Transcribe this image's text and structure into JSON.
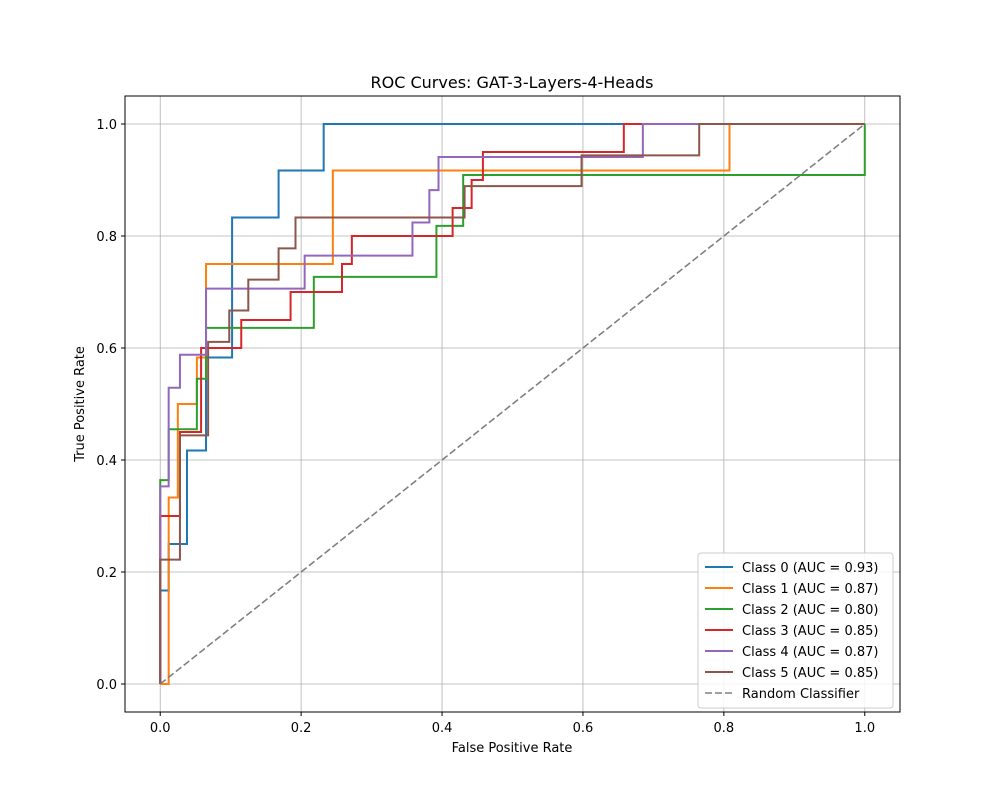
{
  "chart_data": {
    "type": "line",
    "title": "ROC Curves: GAT-3-Layers-4-Heads",
    "xlabel": "False Positive Rate",
    "ylabel": "True Positive Rate",
    "xlim": [
      -0.05,
      1.05
    ],
    "ylim": [
      -0.05,
      1.05
    ],
    "xticks": [
      0.0,
      0.2,
      0.4,
      0.6,
      0.8,
      1.0
    ],
    "yticks": [
      0.0,
      0.2,
      0.4,
      0.6,
      0.8,
      1.0
    ],
    "xtick_labels": [
      "0.0",
      "0.2",
      "0.4",
      "0.6",
      "0.8",
      "1.0"
    ],
    "ytick_labels": [
      "0.0",
      "0.2",
      "0.4",
      "0.6",
      "0.8",
      "1.0"
    ],
    "grid": true,
    "legend_position": "lower right",
    "series": [
      {
        "name": "Class 0 (AUC = 0.93)",
        "color": "#1f77b4",
        "step": true,
        "x": [
          0,
          0,
          0.012,
          0.012,
          0.038,
          0.038,
          0.065,
          0.065,
          0.102,
          0.102,
          0.168,
          0.168,
          0.232,
          0.232,
          1.0
        ],
        "y": [
          0,
          0.167,
          0.167,
          0.25,
          0.25,
          0.417,
          0.417,
          0.583,
          0.583,
          0.833,
          0.833,
          0.917,
          0.917,
          1.0,
          1.0
        ]
      },
      {
        "name": "Class 1 (AUC = 0.87)",
        "color": "#ff7f0e",
        "step": true,
        "x": [
          0,
          0.012,
          0.012,
          0.025,
          0.025,
          0.052,
          0.052,
          0.065,
          0.065,
          0.245,
          0.245,
          0.808,
          0.808,
          1.0
        ],
        "y": [
          0,
          0,
          0.333,
          0.333,
          0.5,
          0.5,
          0.583,
          0.583,
          0.75,
          0.75,
          0.917,
          0.917,
          1.0,
          1.0
        ]
      },
      {
        "name": "Class 2 (AUC = 0.80)",
        "color": "#2ca02c",
        "step": true,
        "x": [
          0,
          0,
          0.012,
          0.012,
          0.052,
          0.052,
          0.065,
          0.065,
          0.218,
          0.218,
          0.392,
          0.392,
          0.43,
          0.43,
          1.0,
          1.0
        ],
        "y": [
          0,
          0.364,
          0.364,
          0.455,
          0.455,
          0.545,
          0.545,
          0.636,
          0.636,
          0.727,
          0.727,
          0.818,
          0.818,
          0.909,
          0.909,
          1.0
        ]
      },
      {
        "name": "Class 3 (AUC = 0.85)",
        "color": "#d62728",
        "step": true,
        "x": [
          0,
          0,
          0.028,
          0.028,
          0.058,
          0.058,
          0.115,
          0.115,
          0.185,
          0.185,
          0.258,
          0.258,
          0.272,
          0.272,
          0.415,
          0.415,
          0.442,
          0.442,
          0.458,
          0.458,
          0.658,
          0.658,
          1.0
        ],
        "y": [
          0,
          0.3,
          0.3,
          0.45,
          0.45,
          0.6,
          0.6,
          0.65,
          0.65,
          0.7,
          0.7,
          0.75,
          0.75,
          0.8,
          0.8,
          0.85,
          0.85,
          0.9,
          0.9,
          0.95,
          0.95,
          1.0,
          1.0
        ]
      },
      {
        "name": "Class 4 (AUC = 0.87)",
        "color": "#9467bd",
        "step": true,
        "x": [
          0,
          0,
          0.012,
          0.012,
          0.028,
          0.028,
          0.065,
          0.065,
          0.205,
          0.205,
          0.358,
          0.358,
          0.382,
          0.382,
          0.395,
          0.395,
          0.685,
          0.685,
          1.0
        ],
        "y": [
          0,
          0.353,
          0.353,
          0.529,
          0.529,
          0.588,
          0.588,
          0.706,
          0.706,
          0.765,
          0.765,
          0.824,
          0.824,
          0.882,
          0.882,
          0.941,
          0.941,
          1.0,
          1.0
        ]
      },
      {
        "name": "Class 5 (AUC = 0.85)",
        "color": "#8c564b",
        "step": true,
        "x": [
          0,
          0,
          0.028,
          0.028,
          0.068,
          0.068,
          0.098,
          0.098,
          0.125,
          0.125,
          0.168,
          0.168,
          0.192,
          0.192,
          0.432,
          0.432,
          0.445,
          0.445,
          0.598,
          0.598,
          0.765,
          0.765,
          1.0
        ],
        "y": [
          0,
          0.222,
          0.222,
          0.444,
          0.444,
          0.611,
          0.611,
          0.667,
          0.667,
          0.722,
          0.722,
          0.778,
          0.778,
          0.833,
          0.833,
          0.889,
          0.889,
          0.889,
          0.889,
          0.944,
          0.944,
          1.0,
          1.0
        ]
      },
      {
        "name": "Random Classifier",
        "color": "#808080",
        "dashed": true,
        "x": [
          0,
          1
        ],
        "y": [
          0,
          1
        ]
      }
    ]
  }
}
